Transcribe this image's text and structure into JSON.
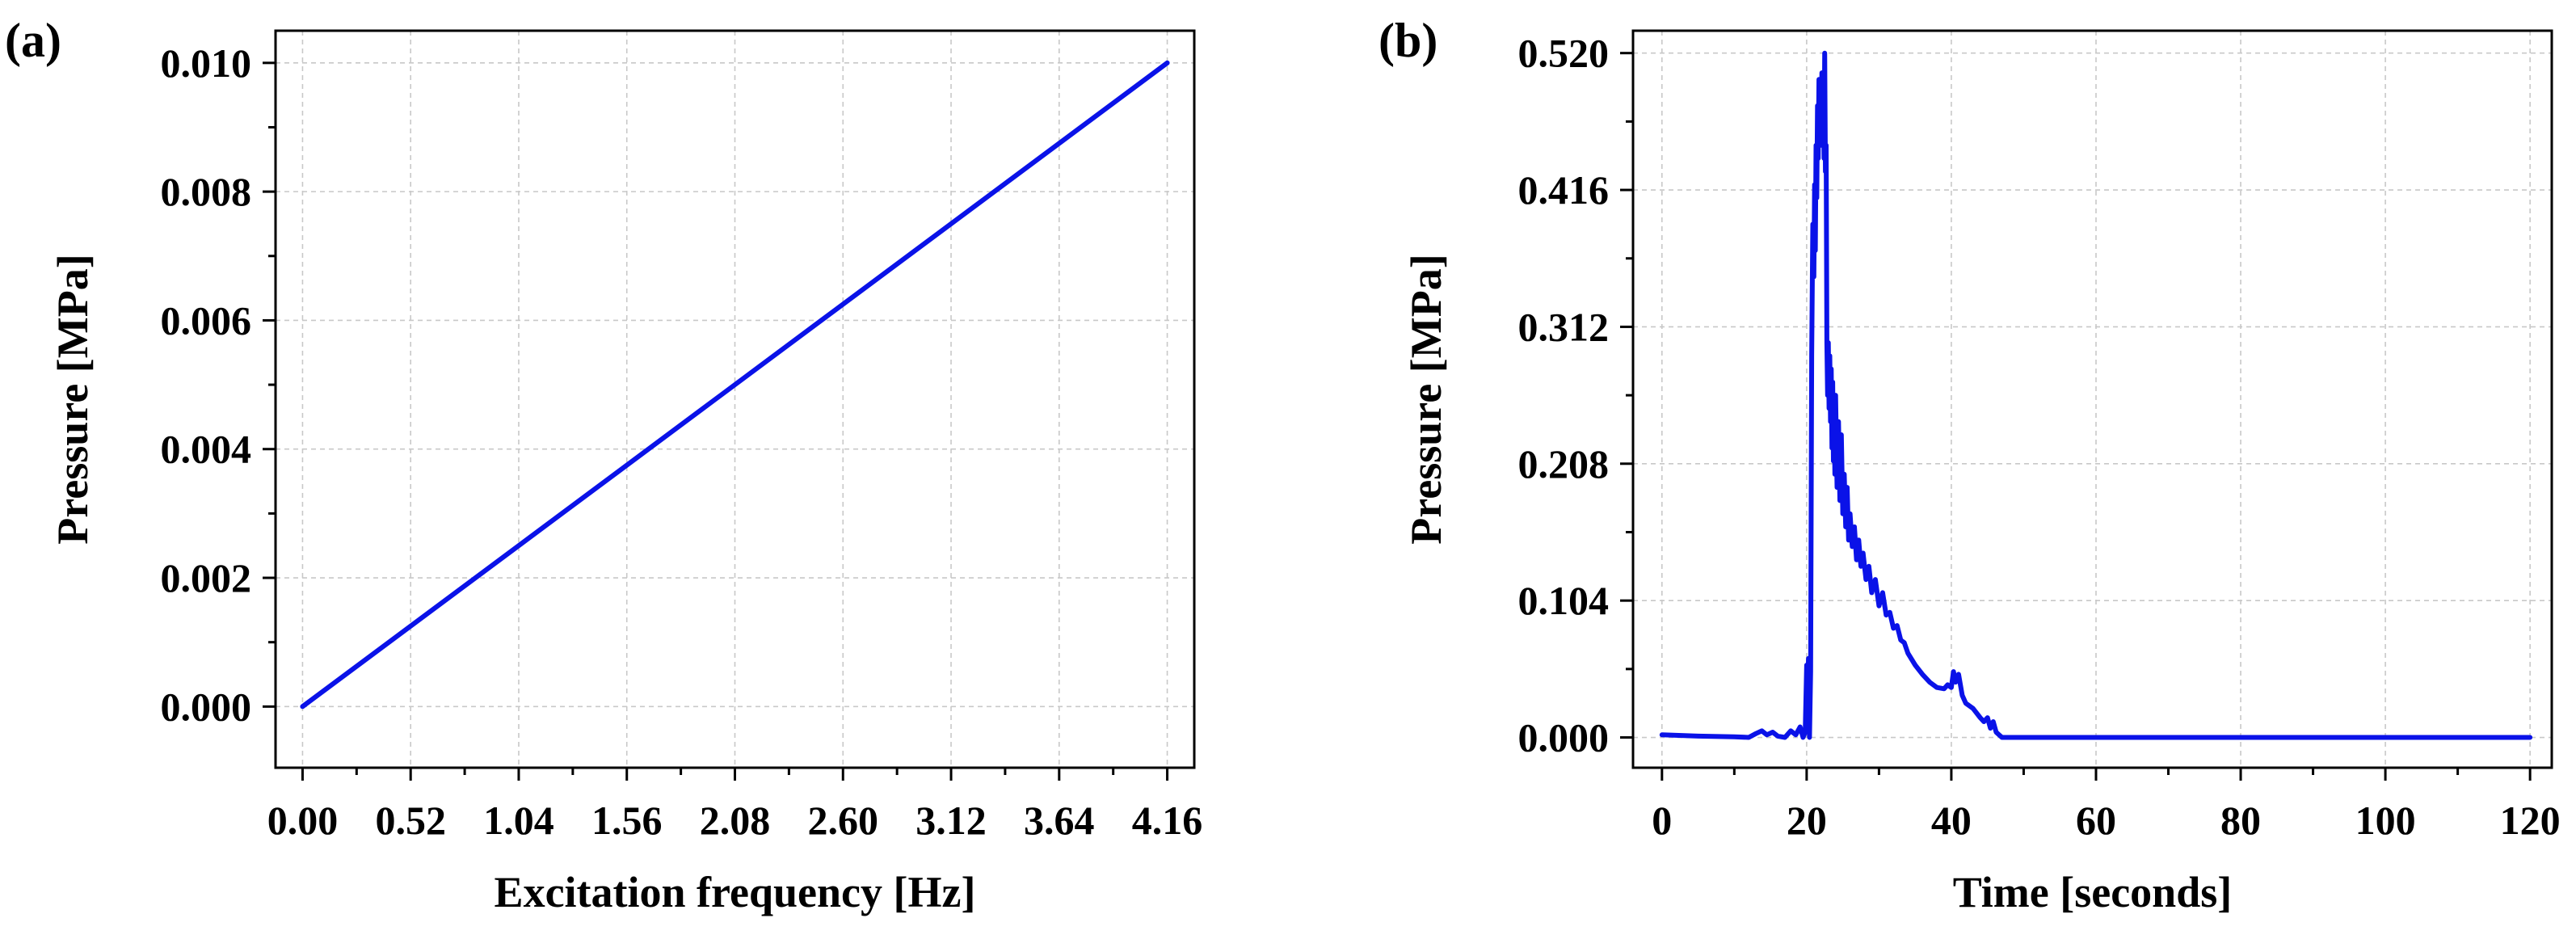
{
  "chart_data": [
    {
      "type": "line",
      "panel_label": "(a)",
      "title": "",
      "xlabel": "Excitation frequency [Hz]",
      "ylabel": "Pressure [MPa]",
      "xlim": [
        -0.13,
        4.29
      ],
      "ylim": [
        -0.00095,
        0.0105
      ],
      "xticks": [
        "0.00",
        "0.52",
        "1.04",
        "1.56",
        "2.08",
        "2.60",
        "3.12",
        "3.64",
        "4.16"
      ],
      "yticks": [
        "0.000",
        "0.002",
        "0.004",
        "0.006",
        "0.008",
        "0.010"
      ],
      "grid": true,
      "color": "#0a12e8",
      "series": [
        {
          "name": "Pressure",
          "x": [
            0.0,
            4.16
          ],
          "y": [
            0.0,
            0.01
          ]
        }
      ]
    },
    {
      "type": "line",
      "panel_label": "(b)",
      "title": "",
      "xlabel": "Time [seconds]",
      "ylabel": "Pressure [MPa]",
      "xlim": [
        -4,
        123
      ],
      "ylim": [
        -0.023,
        0.537
      ],
      "xticks": [
        "0",
        "20",
        "40",
        "60",
        "80",
        "100",
        "120"
      ],
      "yticks": [
        "0.000",
        "0.104",
        "0.208",
        "0.312",
        "0.416",
        "0.520"
      ],
      "grid": true,
      "color": "#0a12e8",
      "series": [
        {
          "name": "Pressure",
          "x": [
            0,
            5,
            10,
            12,
            13,
            13.8,
            14.5,
            15.3,
            16,
            17,
            17.8,
            18.5,
            19.1,
            19.5,
            19.8,
            20.0,
            20.1,
            20.25,
            20.4,
            20.55,
            20.7,
            20.85,
            21.0,
            21.1,
            21.2,
            21.3,
            21.4,
            21.5,
            21.6,
            21.7,
            21.8,
            21.9,
            22.0,
            22.1,
            22.2,
            22.3,
            22.4,
            22.5,
            22.6,
            22.7,
            22.8,
            22.9,
            23.0,
            23.1,
            23.2,
            23.3,
            23.4,
            23.5,
            23.6,
            23.7,
            23.8,
            23.9,
            24.0,
            24.2,
            24.4,
            24.6,
            24.8,
            25.0,
            25.2,
            25.4,
            25.6,
            25.8,
            26.0,
            26.3,
            26.6,
            26.9,
            27.2,
            27.5,
            27.8,
            28.2,
            28.6,
            29.0,
            29.5,
            30.0,
            30.5,
            31.0,
            31.5,
            32.0,
            32.5,
            33.0,
            33.5,
            34.0,
            35.0,
            36.0,
            37.0,
            38.0,
            39.0,
            39.5,
            40.0,
            40.3,
            40.6,
            41.0,
            41.5,
            42.0,
            43.0,
            44.0,
            44.5,
            45.0,
            45.4,
            45.8,
            46.2,
            46.6,
            47.0,
            48.0,
            60.0,
            80.0,
            100.0,
            120.0
          ],
          "y": [
            0.002,
            0.001,
            0.0005,
            0.0,
            0.003,
            0.005,
            0.002,
            0.004,
            0.001,
            0.0,
            0.005,
            0.002,
            0.008,
            0.0,
            0.004,
            0.055,
            0.01,
            0.06,
            0.0,
            0.05,
            0.29,
            0.39,
            0.35,
            0.42,
            0.37,
            0.45,
            0.41,
            0.48,
            0.44,
            0.5,
            0.46,
            0.49,
            0.45,
            0.505,
            0.46,
            0.5,
            0.44,
            0.52,
            0.43,
            0.45,
            0.3,
            0.26,
            0.3,
            0.25,
            0.29,
            0.24,
            0.28,
            0.22,
            0.27,
            0.21,
            0.25,
            0.2,
            0.26,
            0.19,
            0.24,
            0.18,
            0.23,
            0.17,
            0.2,
            0.16,
            0.19,
            0.15,
            0.17,
            0.145,
            0.16,
            0.135,
            0.15,
            0.13,
            0.14,
            0.12,
            0.13,
            0.11,
            0.12,
            0.1,
            0.11,
            0.093,
            0.095,
            0.083,
            0.085,
            0.074,
            0.072,
            0.064,
            0.055,
            0.048,
            0.042,
            0.038,
            0.037,
            0.04,
            0.038,
            0.05,
            0.042,
            0.048,
            0.032,
            0.026,
            0.022,
            0.015,
            0.012,
            0.015,
            0.007,
            0.012,
            0.004,
            0.002,
            0.0,
            0.0,
            0.0,
            0.0,
            0.0,
            0.0
          ]
        }
      ]
    }
  ]
}
